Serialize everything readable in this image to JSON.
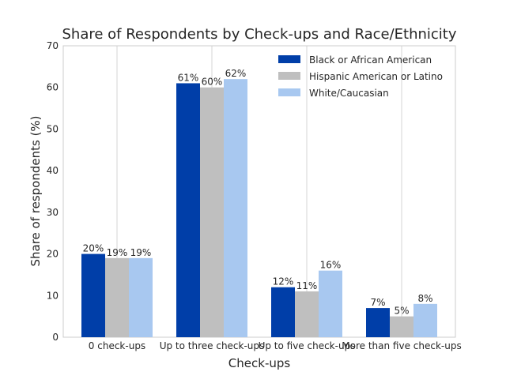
{
  "chart_data": {
    "type": "bar",
    "title": "Share of Respondents by Check-ups and Race/Ethnicity",
    "xlabel": "Check-ups",
    "ylabel": "Share of respondents (%)",
    "ylim": [
      0,
      70
    ],
    "yticks": [
      0,
      10,
      20,
      30,
      40,
      50,
      60,
      70
    ],
    "grid": true,
    "legend_position": "top-right",
    "categories": [
      "0 check-ups",
      "Up to three check-ups",
      "Up to five check-ups",
      "More than five check-ups"
    ],
    "series": [
      {
        "name": "Black or African American",
        "color": "#003ea8",
        "values": [
          20,
          61,
          12,
          7
        ],
        "labels": [
          "20%",
          "61%",
          "12%",
          "7%"
        ]
      },
      {
        "name": "Hispanic American or Latino",
        "color": "#bfbfbf",
        "values": [
          19,
          60,
          11,
          5
        ],
        "labels": [
          "19%",
          "60%",
          "11%",
          "5%"
        ]
      },
      {
        "name": "White/Caucasian",
        "color": "#a8c8f0",
        "values": [
          19,
          62,
          16,
          8
        ],
        "labels": [
          "19%",
          "62%",
          "16%",
          "8%"
        ]
      }
    ]
  }
}
